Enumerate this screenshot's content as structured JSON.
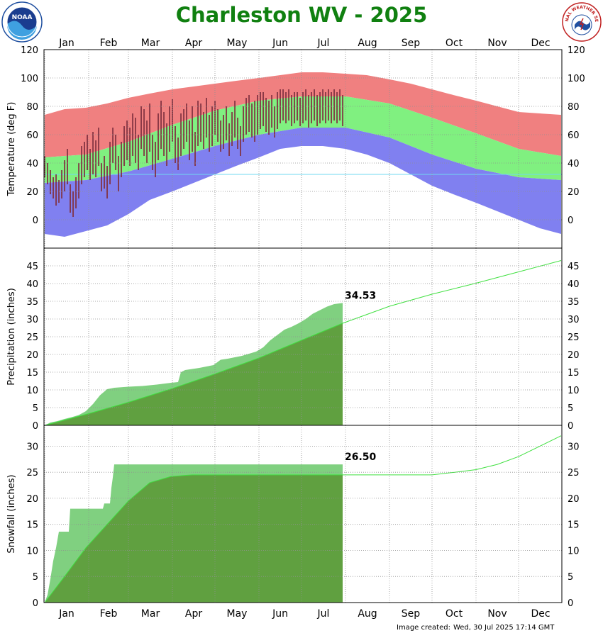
{
  "title": "Charleston WV - 2025",
  "footer": {
    "label": "Image created:",
    "timestamp": "Wed, 30 Jul 2025 17:14 GMT"
  },
  "logos": {
    "left": "NOAA",
    "right": "NATIONAL WEATHER SERVICE"
  },
  "months": [
    "Jan",
    "Feb",
    "Mar",
    "Apr",
    "May",
    "Jun",
    "Jul",
    "Aug",
    "Sep",
    "Oct",
    "Nov",
    "Dec"
  ],
  "colors": {
    "record_high": "#f08080",
    "normal_range": "#80f080",
    "record_low": "#8080f0",
    "observed": "#803040",
    "normal_low_ref": "#70d8f0",
    "obs_precip": "#80d080",
    "normal_precip": "#60a040",
    "normal_line": "#40e040",
    "grid": "#909090"
  },
  "chart_data": [
    {
      "type": "area",
      "panel": "temperature",
      "ylabel": "Temperature (deg F)",
      "ylim": [
        -20,
        120
      ],
      "yticks": [
        0,
        20,
        40,
        60,
        80,
        100,
        120
      ],
      "grid": true,
      "x_units": "day of year",
      "normal_high": [
        [
          1,
          44
        ],
        [
          30,
          46
        ],
        [
          60,
          55
        ],
        [
          91,
          67
        ],
        [
          121,
          77
        ],
        [
          152,
          84
        ],
        [
          182,
          87
        ],
        [
          213,
          87
        ],
        [
          244,
          82
        ],
        [
          274,
          72
        ],
        [
          305,
          61
        ],
        [
          335,
          50
        ],
        [
          365,
          45
        ]
      ],
      "normal_low": [
        [
          1,
          26
        ],
        [
          30,
          28
        ],
        [
          60,
          34
        ],
        [
          91,
          43
        ],
        [
          121,
          52
        ],
        [
          152,
          60
        ],
        [
          182,
          65
        ],
        [
          213,
          65
        ],
        [
          244,
          58
        ],
        [
          274,
          46
        ],
        [
          305,
          36
        ],
        [
          335,
          30
        ],
        [
          365,
          28
        ]
      ],
      "record_high": [
        [
          1,
          74
        ],
        [
          15,
          78
        ],
        [
          30,
          79
        ],
        [
          45,
          82
        ],
        [
          60,
          86
        ],
        [
          75,
          89
        ],
        [
          91,
          92
        ],
        [
          106,
          94
        ],
        [
          121,
          96
        ],
        [
          136,
          98
        ],
        [
          152,
          100
        ],
        [
          167,
          102
        ],
        [
          182,
          104
        ],
        [
          197,
          104
        ],
        [
          213,
          103
        ],
        [
          228,
          102
        ],
        [
          244,
          99
        ],
        [
          259,
          96
        ],
        [
          274,
          92
        ],
        [
          289,
          88
        ],
        [
          305,
          84
        ],
        [
          320,
          80
        ],
        [
          335,
          76
        ],
        [
          350,
          75
        ],
        [
          365,
          74
        ]
      ],
      "record_low": [
        [
          1,
          -10
        ],
        [
          15,
          -12
        ],
        [
          30,
          -8
        ],
        [
          45,
          -4
        ],
        [
          60,
          4
        ],
        [
          75,
          14
        ],
        [
          91,
          20
        ],
        [
          106,
          26
        ],
        [
          121,
          32
        ],
        [
          136,
          38
        ],
        [
          152,
          44
        ],
        [
          167,
          50
        ],
        [
          182,
          52
        ],
        [
          197,
          52
        ],
        [
          213,
          50
        ],
        [
          228,
          46
        ],
        [
          244,
          40
        ],
        [
          259,
          32
        ],
        [
          274,
          24
        ],
        [
          289,
          18
        ],
        [
          305,
          12
        ],
        [
          320,
          6
        ],
        [
          335,
          0
        ],
        [
          350,
          -6
        ],
        [
          365,
          -10
        ]
      ],
      "observed": [
        [
          1,
          30,
          45
        ],
        [
          3,
          25,
          40
        ],
        [
          5,
          18,
          35
        ],
        [
          7,
          15,
          30
        ],
        [
          9,
          10,
          32
        ],
        [
          11,
          12,
          28
        ],
        [
          13,
          15,
          35
        ],
        [
          15,
          20,
          42
        ],
        [
          17,
          25,
          50
        ],
        [
          19,
          5,
          25
        ],
        [
          21,
          2,
          20
        ],
        [
          23,
          8,
          30
        ],
        [
          25,
          15,
          40
        ],
        [
          27,
          25,
          52
        ],
        [
          29,
          30,
          55
        ],
        [
          31,
          35,
          60
        ],
        [
          33,
          28,
          50
        ],
        [
          35,
          32,
          62
        ],
        [
          37,
          30,
          56
        ],
        [
          39,
          38,
          65
        ],
        [
          41,
          20,
          40
        ],
        [
          43,
          22,
          45
        ],
        [
          45,
          15,
          38
        ],
        [
          47,
          25,
          55
        ],
        [
          49,
          40,
          65
        ],
        [
          51,
          35,
          60
        ],
        [
          53,
          20,
          45
        ],
        [
          55,
          30,
          55
        ],
        [
          57,
          38,
          66
        ],
        [
          59,
          42,
          70
        ],
        [
          61,
          38,
          65
        ],
        [
          63,
          45,
          75
        ],
        [
          65,
          40,
          72
        ],
        [
          67,
          35,
          60
        ],
        [
          69,
          50,
          80
        ],
        [
          71,
          45,
          78
        ],
        [
          73,
          40,
          70
        ],
        [
          75,
          48,
          82
        ],
        [
          77,
          35,
          60
        ],
        [
          79,
          30,
          55
        ],
        [
          81,
          42,
          75
        ],
        [
          83,
          50,
          84
        ],
        [
          85,
          45,
          76
        ],
        [
          87,
          38,
          68
        ],
        [
          89,
          48,
          80
        ],
        [
          91,
          55,
          85
        ],
        [
          93,
          40,
          66
        ],
        [
          95,
          35,
          58
        ],
        [
          97,
          45,
          75
        ],
        [
          99,
          50,
          78
        ],
        [
          101,
          55,
          82
        ],
        [
          103,
          42,
          70
        ],
        [
          105,
          48,
          80
        ],
        [
          107,
          38,
          62
        ],
        [
          109,
          52,
          84
        ],
        [
          111,
          55,
          82
        ],
        [
          113,
          50,
          76
        ],
        [
          115,
          58,
          86
        ],
        [
          117,
          48,
          74
        ],
        [
          119,
          52,
          80
        ],
        [
          121,
          60,
          84
        ],
        [
          123,
          55,
          78
        ],
        [
          125,
          48,
          70
        ],
        [
          127,
          50,
          74
        ],
        [
          129,
          56,
          80
        ],
        [
          131,
          45,
          68
        ],
        [
          133,
          52,
          76
        ],
        [
          135,
          58,
          84
        ],
        [
          137,
          50,
          72
        ],
        [
          139,
          45,
          66
        ],
        [
          141,
          55,
          80
        ],
        [
          143,
          60,
          86
        ],
        [
          145,
          62,
          88
        ],
        [
          147,
          58,
          82
        ],
        [
          149,
          55,
          84
        ],
        [
          151,
          60,
          88
        ],
        [
          153,
          64,
          90
        ],
        [
          155,
          66,
          90
        ],
        [
          157,
          62,
          86
        ],
        [
          159,
          60,
          84
        ],
        [
          161,
          65,
          88
        ],
        [
          163,
          58,
          80
        ],
        [
          165,
          64,
          90
        ],
        [
          167,
          68,
          92
        ],
        [
          169,
          70,
          92
        ],
        [
          171,
          68,
          90
        ],
        [
          173,
          70,
          92
        ],
        [
          175,
          66,
          88
        ],
        [
          177,
          68,
          90
        ],
        [
          179,
          70,
          90
        ],
        [
          181,
          66,
          86
        ],
        [
          183,
          68,
          90
        ],
        [
          185,
          70,
          92
        ],
        [
          187,
          65,
          88
        ],
        [
          189,
          68,
          90
        ],
        [
          191,
          70,
          92
        ],
        [
          193,
          66,
          88
        ],
        [
          195,
          68,
          90
        ],
        [
          197,
          70,
          92
        ],
        [
          199,
          68,
          90
        ],
        [
          201,
          70,
          92
        ],
        [
          203,
          68,
          90
        ],
        [
          205,
          70,
          92
        ],
        [
          207,
          68,
          90
        ],
        [
          209,
          70,
          92
        ],
        [
          211,
          66,
          88
        ]
      ]
    },
    {
      "type": "area",
      "panel": "precipitation",
      "ylabel": "Precipitation (inches)",
      "ylim": [
        0,
        50
      ],
      "yticks": [
        0,
        5,
        10,
        15,
        20,
        25,
        30,
        35,
        40,
        45
      ],
      "grid": true,
      "observed_total_label": "34.53",
      "observed_cumulative": [
        [
          1,
          0
        ],
        [
          5,
          0.8
        ],
        [
          10,
          1.2
        ],
        [
          15,
          1.8
        ],
        [
          20,
          2.3
        ],
        [
          25,
          2.9
        ],
        [
          30,
          4.0
        ],
        [
          35,
          6.0
        ],
        [
          40,
          8.5
        ],
        [
          45,
          10.2
        ],
        [
          50,
          10.6
        ],
        [
          60,
          10.9
        ],
        [
          70,
          11.1
        ],
        [
          80,
          11.5
        ],
        [
          90,
          12.0
        ],
        [
          95,
          12.2
        ],
        [
          97,
          15.0
        ],
        [
          100,
          15.6
        ],
        [
          110,
          16.2
        ],
        [
          120,
          17.0
        ],
        [
          125,
          18.5
        ],
        [
          130,
          18.8
        ],
        [
          140,
          19.6
        ],
        [
          150,
          20.8
        ],
        [
          155,
          22.0
        ],
        [
          160,
          24.0
        ],
        [
          165,
          25.5
        ],
        [
          170,
          27.0
        ],
        [
          175,
          27.8
        ],
        [
          180,
          28.8
        ],
        [
          185,
          30.0
        ],
        [
          190,
          31.5
        ],
        [
          195,
          32.5
        ],
        [
          200,
          33.5
        ],
        [
          205,
          34.2
        ],
        [
          211,
          34.53
        ]
      ],
      "normal_cumulative": [
        [
          1,
          0
        ],
        [
          32,
          3.3
        ],
        [
          60,
          6.5
        ],
        [
          91,
          10.4
        ],
        [
          121,
          14.5
        ],
        [
          152,
          19.0
        ],
        [
          182,
          24.0
        ],
        [
          211,
          28.8
        ],
        [
          244,
          33.6
        ],
        [
          274,
          37.0
        ],
        [
          305,
          40.1
        ],
        [
          335,
          43.3
        ],
        [
          365,
          46.5
        ]
      ]
    },
    {
      "type": "area",
      "panel": "snowfall",
      "ylabel": "Snowfall (inches)",
      "ylim": [
        0,
        34
      ],
      "yticks": [
        0,
        5,
        10,
        15,
        20,
        25,
        30
      ],
      "grid": true,
      "observed_total_label": "26.50",
      "observed_cumulative": [
        [
          1,
          0
        ],
        [
          3,
          1.5
        ],
        [
          5,
          4.5
        ],
        [
          7,
          8.0
        ],
        [
          9,
          10.5
        ],
        [
          11,
          13.6
        ],
        [
          18,
          13.6
        ],
        [
          19,
          18.0
        ],
        [
          42,
          18.0
        ],
        [
          43,
          19.0
        ],
        [
          47,
          19.0
        ],
        [
          48,
          22.0
        ],
        [
          49,
          24.0
        ],
        [
          50,
          26.5
        ],
        [
          211,
          26.5
        ]
      ],
      "normal_cumulative": [
        [
          1,
          0
        ],
        [
          15,
          5.0
        ],
        [
          30,
          10.5
        ],
        [
          45,
          15.0
        ],
        [
          60,
          19.5
        ],
        [
          75,
          23.0
        ],
        [
          90,
          24.2
        ],
        [
          105,
          24.5
        ],
        [
          121,
          24.5
        ],
        [
          211,
          24.5
        ],
        [
          244,
          24.5
        ],
        [
          274,
          24.5
        ],
        [
          290,
          25.0
        ],
        [
          305,
          25.5
        ],
        [
          320,
          26.5
        ],
        [
          335,
          28.0
        ],
        [
          350,
          30.0
        ],
        [
          365,
          32.0
        ]
      ]
    }
  ]
}
